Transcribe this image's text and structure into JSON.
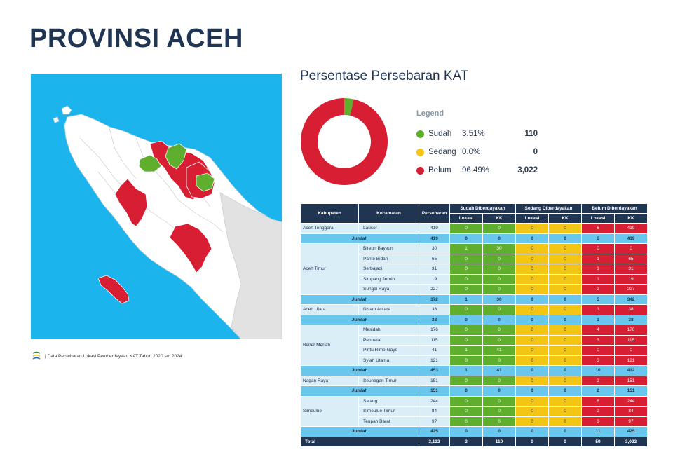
{
  "page": {
    "title": "PROVINSI ACEH"
  },
  "source": {
    "text": "| Data Persebaran Lokasi Pemberdayaan KAT Tahun 2020 s/d 2024"
  },
  "colors": {
    "sudah": "#5fae2e",
    "sedang": "#f3c514",
    "belum": "#d81e32",
    "navy": "#1f3552",
    "sea": "#1cb4ec"
  },
  "chart_data": {
    "type": "pie",
    "title": "Persentase Persebaran KAT",
    "legend_title": "Legend",
    "legend_position": "right",
    "donut": true,
    "slices": [
      {
        "label": "Sudah",
        "percent": 3.51,
        "percent_text": "3.51%",
        "count": 110,
        "count_text": "110",
        "color": "#5fae2e"
      },
      {
        "label": "Sedang",
        "percent": 0.0,
        "percent_text": "0.0%",
        "count": 0,
        "count_text": "0",
        "color": "#f3c514"
      },
      {
        "label": "Belum",
        "percent": 96.49,
        "percent_text": "96.49%",
        "count": 3022,
        "count_text": "3,022",
        "color": "#d81e32"
      }
    ]
  },
  "table": {
    "headers": {
      "kabupaten": "Kabupaten",
      "kecamatan": "Kecamatan",
      "persebaran": "Persebaran",
      "sudah": "Sudah Diberdayakan",
      "sedang": "Sedang Diberdayakan",
      "belum": "Belum Diberdayakan",
      "lokasi": "Lokasi",
      "kk": "KK"
    },
    "sum_label": "Jumlah",
    "groups": [
      {
        "kabupaten": "Aceh Tenggara",
        "rows": [
          {
            "kecamatan": "Lauser",
            "persebaran": "419",
            "sl": "0",
            "skk": "0",
            "dl": "0",
            "dkk": "0",
            "bl": "6",
            "bkk": "419"
          }
        ],
        "sum": {
          "persebaran": "419",
          "sl": "0",
          "skk": "0",
          "dl": "0",
          "dkk": "0",
          "bl": "6",
          "bkk": "419"
        }
      },
      {
        "kabupaten": "Aceh Timur",
        "rows": [
          {
            "kecamatan": "Bireun Bayeun",
            "persebaran": "30",
            "sl": "1",
            "skk": "30",
            "dl": "0",
            "dkk": "0",
            "bl": "0",
            "bkk": "0"
          },
          {
            "kecamatan": "Pante Bidari",
            "persebaran": "65",
            "sl": "0",
            "skk": "0",
            "dl": "0",
            "dkk": "0",
            "bl": "1",
            "bkk": "65"
          },
          {
            "kecamatan": "Serbajadi",
            "persebaran": "31",
            "sl": "0",
            "skk": "0",
            "dl": "0",
            "dkk": "0",
            "bl": "1",
            "bkk": "31"
          },
          {
            "kecamatan": "Simpang Jernih",
            "persebaran": "19",
            "sl": "0",
            "skk": "0",
            "dl": "0",
            "dkk": "0",
            "bl": "1",
            "bkk": "19"
          },
          {
            "kecamatan": "Sungai Raya",
            "persebaran": "227",
            "sl": "0",
            "skk": "0",
            "dl": "0",
            "dkk": "0",
            "bl": "2",
            "bkk": "227"
          }
        ],
        "sum": {
          "persebaran": "372",
          "sl": "1",
          "skk": "30",
          "dl": "0",
          "dkk": "0",
          "bl": "5",
          "bkk": "342"
        }
      },
      {
        "kabupaten": "Aceh Utara",
        "rows": [
          {
            "kecamatan": "Nisam Antara",
            "persebaran": "38",
            "sl": "0",
            "skk": "0",
            "dl": "0",
            "dkk": "0",
            "bl": "1",
            "bkk": "38"
          }
        ],
        "sum": {
          "persebaran": "38",
          "sl": "0",
          "skk": "0",
          "dl": "0",
          "dkk": "0",
          "bl": "1",
          "bkk": "38"
        }
      },
      {
        "kabupaten": "Bener Meriah",
        "rows": [
          {
            "kecamatan": "Mesidah",
            "persebaran": "176",
            "sl": "0",
            "skk": "0",
            "dl": "0",
            "dkk": "0",
            "bl": "4",
            "bkk": "176"
          },
          {
            "kecamatan": "Permata",
            "persebaran": "115",
            "sl": "0",
            "skk": "0",
            "dl": "0",
            "dkk": "0",
            "bl": "3",
            "bkk": "115"
          },
          {
            "kecamatan": "Pintu Rime Gayo",
            "persebaran": "41",
            "sl": "1",
            "skk": "41",
            "dl": "0",
            "dkk": "0",
            "bl": "0",
            "bkk": "0"
          },
          {
            "kecamatan": "Syiah Utama",
            "persebaran": "121",
            "sl": "0",
            "skk": "0",
            "dl": "0",
            "dkk": "0",
            "bl": "3",
            "bkk": "121"
          }
        ],
        "sum": {
          "persebaran": "453",
          "sl": "1",
          "skk": "41",
          "dl": "0",
          "dkk": "0",
          "bl": "10",
          "bkk": "412"
        }
      },
      {
        "kabupaten": "Nagan Raya",
        "rows": [
          {
            "kecamatan": "Seunagan Timur",
            "persebaran": "151",
            "sl": "0",
            "skk": "0",
            "dl": "0",
            "dkk": "0",
            "bl": "2",
            "bkk": "151"
          }
        ],
        "sum": {
          "persebaran": "151",
          "sl": "0",
          "skk": "0",
          "dl": "0",
          "dkk": "0",
          "bl": "2",
          "bkk": "151"
        }
      },
      {
        "kabupaten": "Simeulue",
        "rows": [
          {
            "kecamatan": "Salang",
            "persebaran": "244",
            "sl": "0",
            "skk": "0",
            "dl": "0",
            "dkk": "0",
            "bl": "6",
            "bkk": "244"
          },
          {
            "kecamatan": "Simeulue Timur",
            "persebaran": "84",
            "sl": "0",
            "skk": "0",
            "dl": "0",
            "dkk": "0",
            "bl": "2",
            "bkk": "84"
          },
          {
            "kecamatan": "Teupah Barat",
            "persebaran": "97",
            "sl": "0",
            "skk": "0",
            "dl": "0",
            "dkk": "0",
            "bl": "3",
            "bkk": "97"
          }
        ],
        "sum": {
          "persebaran": "425",
          "sl": "0",
          "skk": "0",
          "dl": "0",
          "dkk": "0",
          "bl": "11",
          "bkk": "425"
        }
      }
    ],
    "total": {
      "label": "Total",
      "persebaran": "3,132",
      "sl": "3",
      "skk": "110",
      "dl": "0",
      "dkk": "0",
      "bl": "59",
      "bkk": "3,022"
    }
  }
}
